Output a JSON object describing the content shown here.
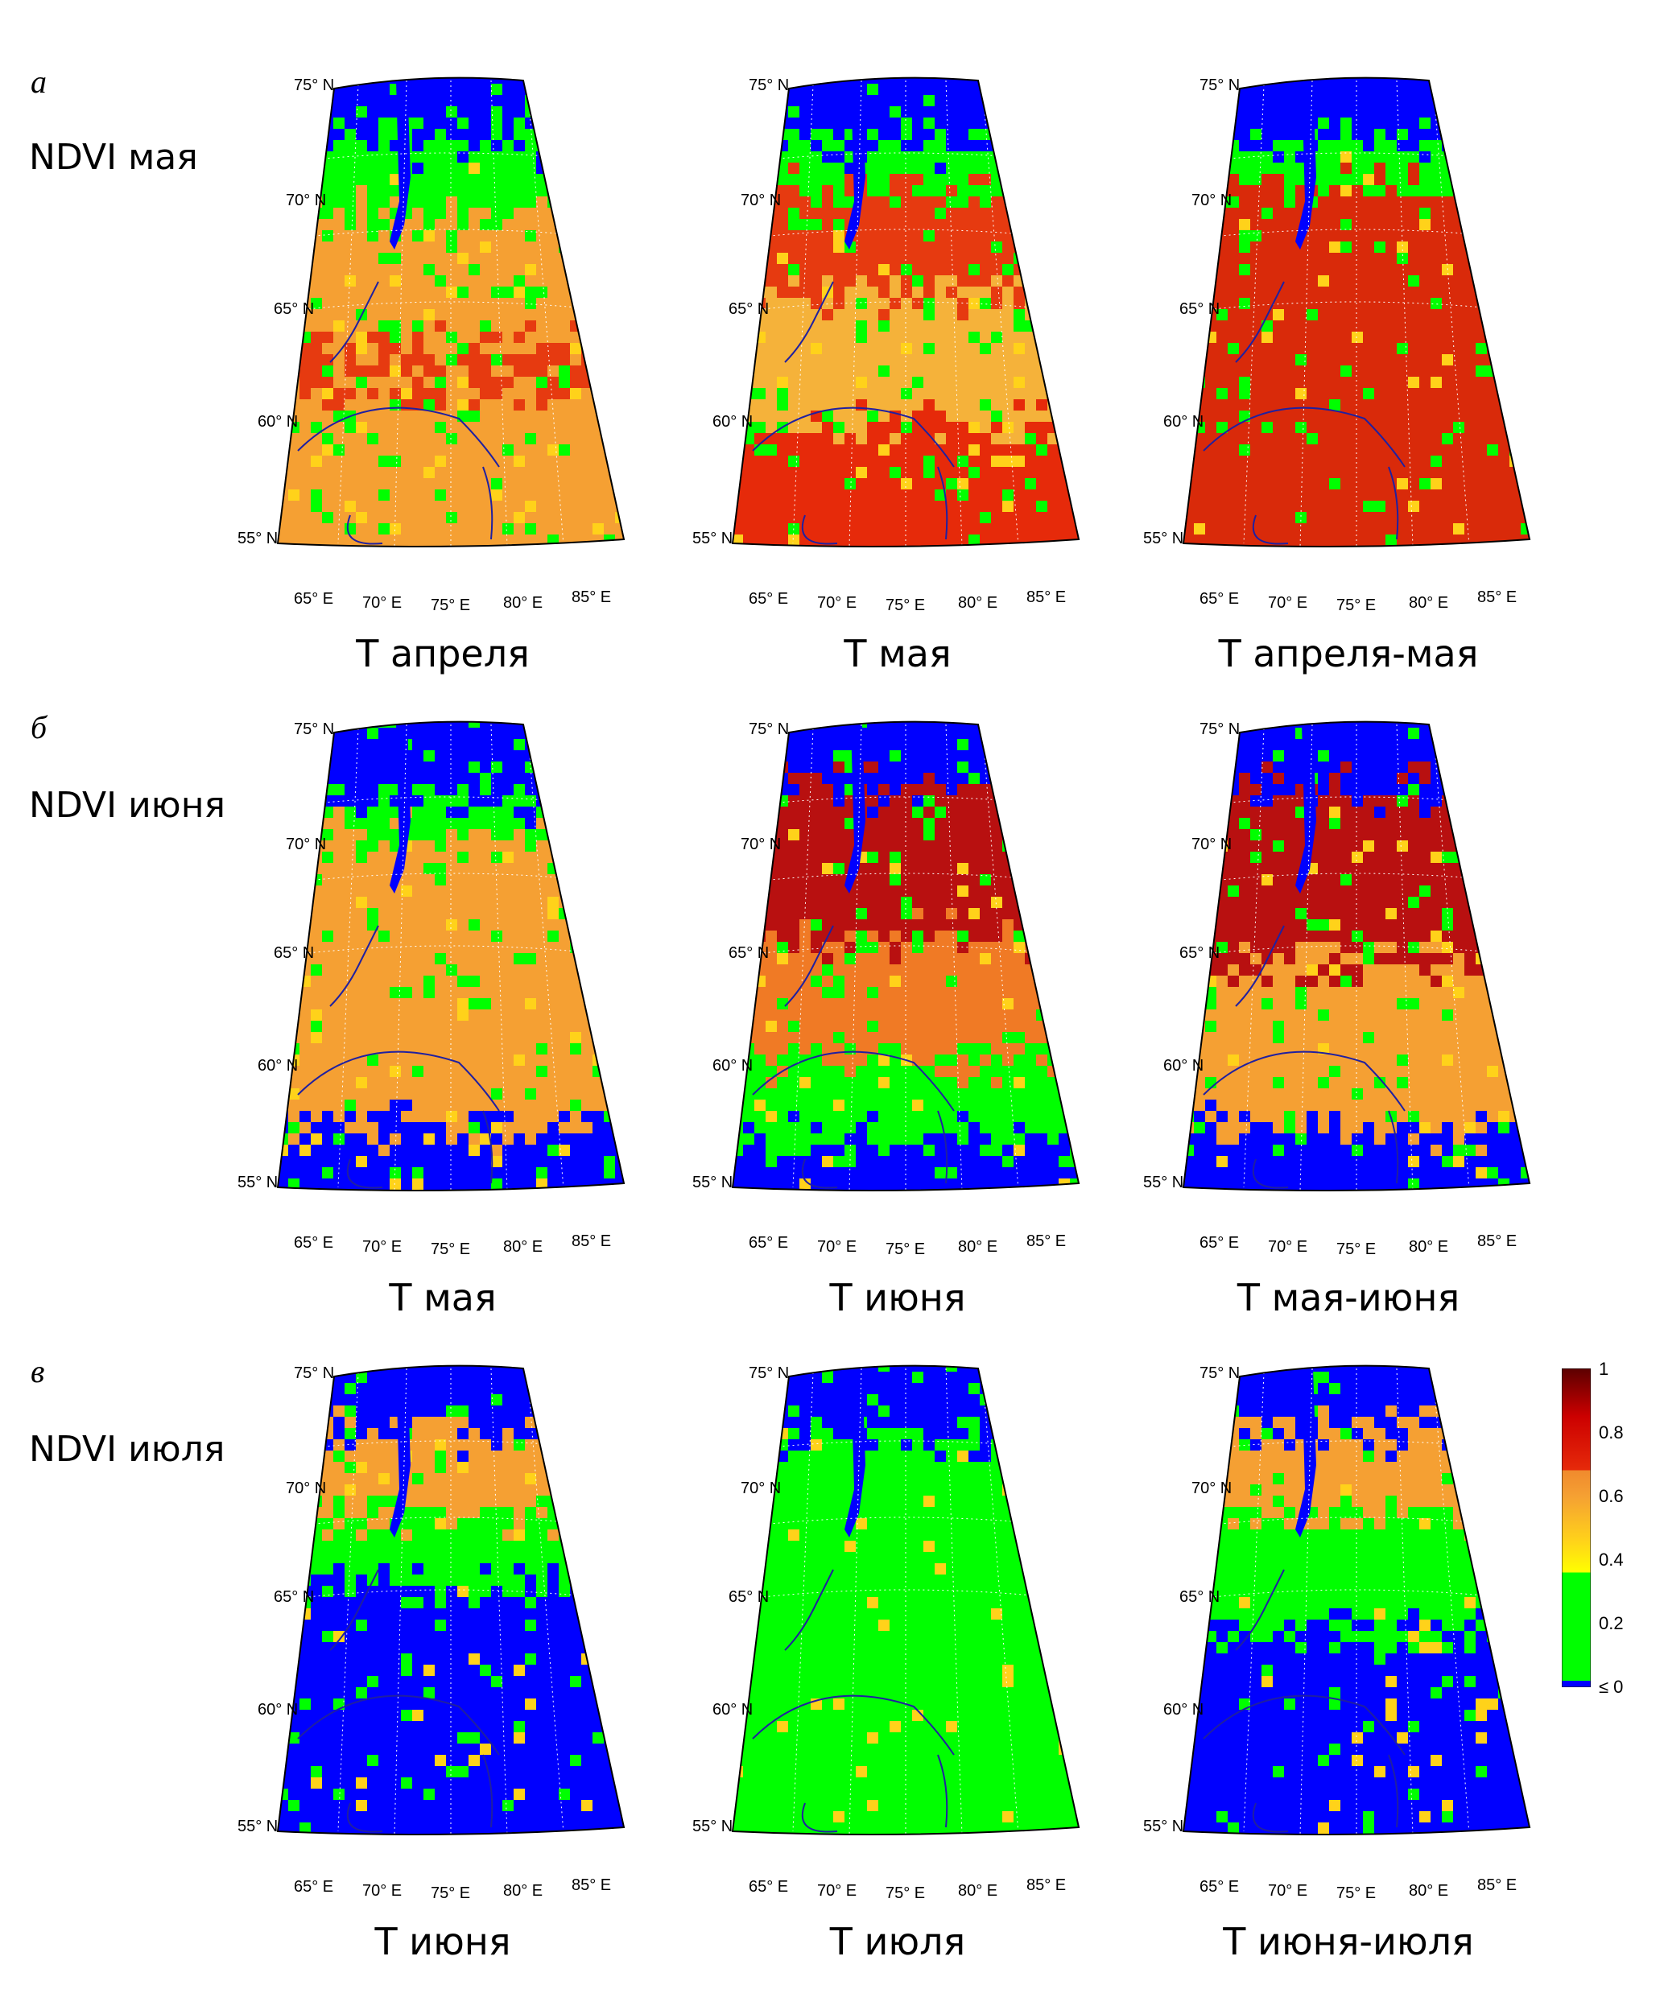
{
  "panels": [
    {
      "letter": "а",
      "title": "NDVI мая",
      "maps": [
        {
          "caption": "T апреля",
          "scheme": "apr"
        },
        {
          "caption": "T мая",
          "scheme": "may"
        },
        {
          "caption": "T апреля-мая",
          "scheme": "aprmay"
        }
      ]
    },
    {
      "letter": "б",
      "title": "NDVI июня",
      "maps": [
        {
          "caption": "T мая",
          "scheme": "jun_may"
        },
        {
          "caption": "T июня",
          "scheme": "jun_jun"
        },
        {
          "caption": "T мая-июня",
          "scheme": "jun_mayjun"
        }
      ]
    },
    {
      "letter": "в",
      "title": "NDVI июля",
      "maps": [
        {
          "caption": "T июня",
          "scheme": "jul_jun"
        },
        {
          "caption": "T июля",
          "scheme": "jul_jul"
        },
        {
          "caption": "T июня-июля",
          "scheme": "jul_junjul"
        }
      ]
    }
  ],
  "lat_labels": [
    "75° N",
    "70° N",
    "65° N",
    "60° N",
    "55° N"
  ],
  "lon_labels": [
    "65° E",
    "70° E",
    "75° E",
    "80° E",
    "85° E"
  ],
  "colorbar": {
    "ticks": [
      "1",
      "0.8",
      "0.6",
      "0.4",
      "0.2",
      "≤ 0"
    ],
    "colors": {
      "blue": "#0000ff",
      "green": "#00ff00",
      "yellow": "#ffff00",
      "orange": "#f5a033",
      "red": "#e60000",
      "darkred": "#6b0000"
    }
  }
}
